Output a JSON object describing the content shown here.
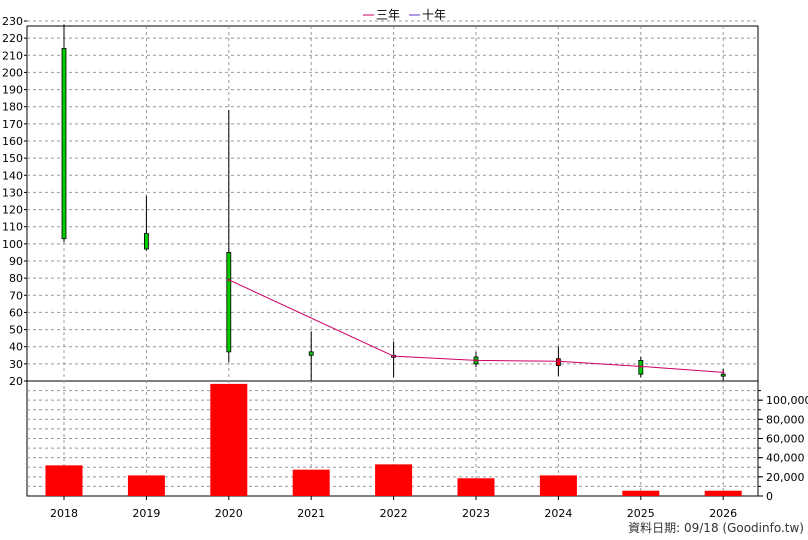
{
  "chart_data": {
    "type": "candlestick+bar",
    "legend": [
      {
        "label": "三年",
        "color": "#cc0066"
      },
      {
        "label": "十年",
        "color": "#6633cc"
      }
    ],
    "categories": [
      "2018",
      "2019",
      "2020",
      "2021",
      "2022",
      "2023",
      "2024",
      "2025",
      "2026"
    ],
    "price_axis": {
      "ylim": [
        20,
        230
      ],
      "ticks": [
        20,
        30,
        40,
        50,
        60,
        70,
        80,
        90,
        100,
        110,
        120,
        130,
        140,
        150,
        160,
        170,
        180,
        190,
        200,
        210,
        220,
        230
      ]
    },
    "volume_axis": {
      "ylim": [
        0,
        120000
      ],
      "ticks": [
        0,
        20000,
        40000,
        60000,
        80000,
        100000
      ],
      "tick_labels": [
        "0",
        "20,000",
        "40,000",
        "60,000",
        "80,000",
        "100,000"
      ]
    },
    "ohlc": [
      {
        "x": "2018",
        "open": 103,
        "high": 228,
        "low": 101,
        "close": 214,
        "color": "#00cc00"
      },
      {
        "x": "2019",
        "open": 97,
        "high": 128,
        "low": 96,
        "close": 106,
        "color": "#00cc00"
      },
      {
        "x": "2020",
        "open": 37,
        "high": 178,
        "low": 31,
        "close": 95,
        "color": "#00cc00"
      },
      {
        "x": "2021",
        "open": 37,
        "high": 49,
        "low": 20,
        "close": 35,
        "color": "#00cc00"
      },
      {
        "x": "2022",
        "open": 34,
        "high": 43,
        "low": 22,
        "close": 35,
        "color": "#00cc00"
      },
      {
        "x": "2023",
        "open": 30,
        "high": 37,
        "low": 28,
        "close": 34,
        "color": "#00cc00"
      },
      {
        "x": "2024",
        "open": 33,
        "high": 40,
        "low": 23,
        "close": 29,
        "color": "#ff0000"
      },
      {
        "x": "2025",
        "open": 24,
        "high": 34,
        "low": 22,
        "close": 32,
        "color": "#00cc00"
      },
      {
        "x": "2026",
        "open": 23,
        "high": 27,
        "low": 20,
        "close": 24,
        "color": "#00cc00"
      }
    ],
    "series": [
      {
        "name": "三年",
        "color": "#cc0066",
        "points": [
          {
            "x": "2020",
            "y": 79
          },
          {
            "x": "2022",
            "y": 34.5
          },
          {
            "x": "2023",
            "y": 32
          },
          {
            "x": "2024",
            "y": 31.5
          },
          {
            "x": "2025",
            "y": 28.5
          },
          {
            "x": "2026",
            "y": 25
          }
        ]
      }
    ],
    "volume": [
      {
        "x": "2018",
        "value": 32000
      },
      {
        "x": "2019",
        "value": 21500
      },
      {
        "x": "2020",
        "value": 117000
      },
      {
        "x": "2021",
        "value": 27500
      },
      {
        "x": "2022",
        "value": 33000
      },
      {
        "x": "2023",
        "value": 18500
      },
      {
        "x": "2024",
        "value": 21500
      },
      {
        "x": "2025",
        "value": 5500
      },
      {
        "x": "2026",
        "value": 5500
      }
    ],
    "footer": "資料日期: 09/18 (Goodinfo.tw)"
  }
}
